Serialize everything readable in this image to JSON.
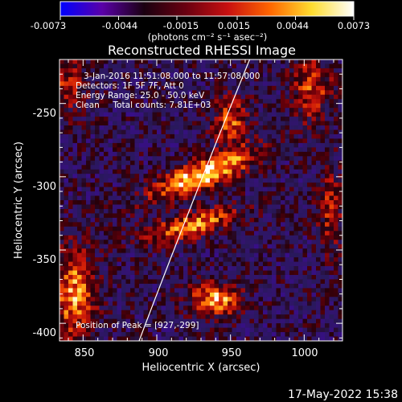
{
  "colorbar": {
    "tick_labels": [
      "-0.0073",
      "-0.0044",
      "-0.0015",
      "0.0015",
      "0.0044",
      "0.0073"
    ],
    "units": "(photons cm⁻² s⁻¹ asec⁻²)",
    "colors": [
      "#0000ff",
      "#5a00a8",
      "#1a0010",
      "#6a0010",
      "#c81010",
      "#ff6600",
      "#ffdd30",
      "#ffffff"
    ]
  },
  "plot": {
    "title": "Reconstructed RHESSI Image",
    "xlabel": "Heliocentric X (arcsec)",
    "ylabel": "Heliocentric Y (arcsec)",
    "x_ticks": [
      "850",
      "900",
      "950",
      "1000"
    ],
    "y_ticks": [
      "-250",
      "-300",
      "-350",
      "-400"
    ],
    "annotations": [
      "3-Jan-2016 11:51:08.000 to 11:57:08.000",
      "Detectors: 1F 5F 7F, Att 0",
      "Energy Range: 25.0 - 50.0 keV",
      "Clean     Total counts: 7.81E+03"
    ],
    "peak_label": "Position of Peak = [927,-299]"
  },
  "footer": {
    "timestamp": "17-May-2022 15:38"
  },
  "chart_data": {
    "type": "heatmap",
    "title": "Reconstructed RHESSI Image",
    "xlabel": "Heliocentric X (arcsec)",
    "ylabel": "Heliocentric Y (arcsec)",
    "xlim": [
      834,
      1026
    ],
    "ylim": [
      -412,
      -220
    ],
    "colorbar_range": [
      -0.0073,
      0.0073
    ],
    "colorbar_ticks": [
      -0.0073,
      -0.0044,
      -0.0015,
      0.0015,
      0.0044,
      0.0073
    ],
    "peak": [
      927,
      -299
    ],
    "sources": [
      {
        "x": 931,
        "y": -299,
        "amp": 1.0,
        "sx": 26,
        "sy": 7,
        "angle": 22
      },
      {
        "x": 924,
        "y": -333,
        "amp": 0.75,
        "sx": 22,
        "sy": 6,
        "angle": 15
      },
      {
        "x": 940,
        "y": -384,
        "amp": 0.8,
        "sx": 12,
        "sy": 8,
        "angle": 0
      },
      {
        "x": 844,
        "y": -380,
        "amp": 0.75,
        "sx": 10,
        "sy": 22,
        "angle": 0
      },
      {
        "x": 950,
        "y": -262,
        "amp": 0.6,
        "sx": 9,
        "sy": 12,
        "angle": 0
      },
      {
        "x": 1005,
        "y": -240,
        "amp": 0.55,
        "sx": 10,
        "sy": 16,
        "angle": 0
      },
      {
        "x": 840,
        "y": -238,
        "amp": 0.45,
        "sx": 10,
        "sy": 14,
        "angle": 0
      },
      {
        "x": 1018,
        "y": -322,
        "amp": 0.45,
        "sx": 6,
        "sy": 20,
        "angle": 0
      }
    ],
    "limb": [
      [
        888,
        -412
      ],
      [
        921,
        -324
      ],
      [
        963,
        -220
      ]
    ]
  }
}
